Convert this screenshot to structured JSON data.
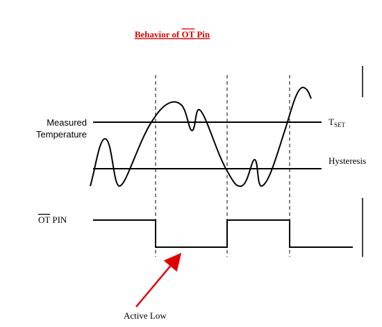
{
  "header": {
    "title": {
      "before": "Behavior of ",
      "overlined": "OT",
      "after": " Pin"
    }
  },
  "labels": {
    "measured_temperature": [
      "Measured",
      "Temperature"
    ],
    "t_set": {
      "main": "T",
      "subscript": "SET"
    },
    "hysteresis": "Hysteresis",
    "ot_pin": {
      "overlined": "OT",
      "after": " PIN"
    },
    "active_low": "Active Low"
  }
}
